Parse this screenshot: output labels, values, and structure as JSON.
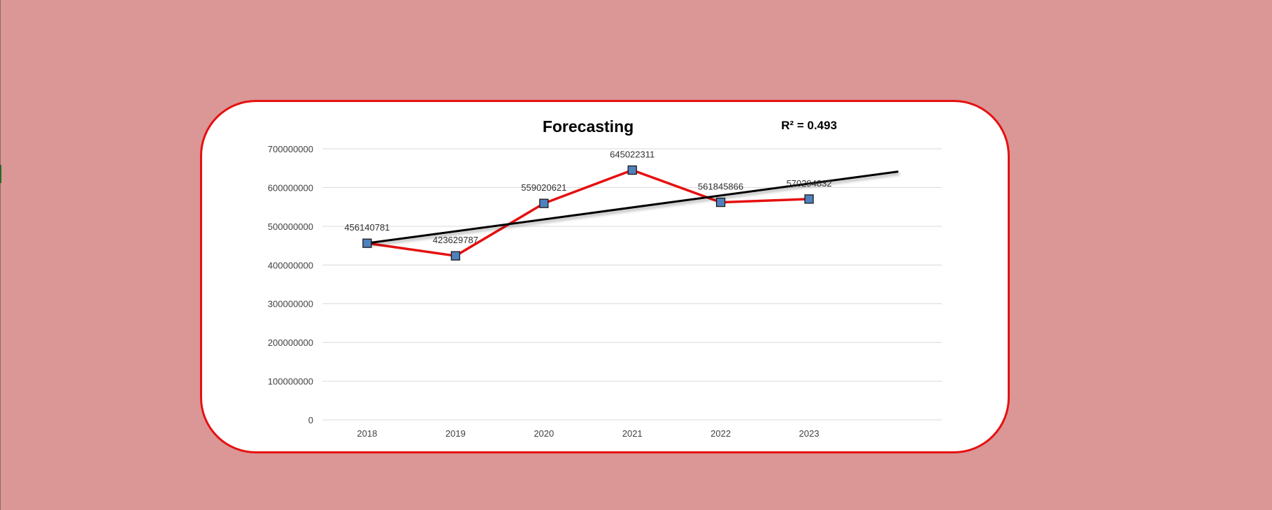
{
  "colors": {
    "background": "#db9696",
    "card_border": "#e61010",
    "series_line": "#e61010",
    "marker_fill": "#4f81bd",
    "trendline": "#000000",
    "grid": "#d9d9d9"
  },
  "chart_data": {
    "type": "line",
    "title": "Forecasting",
    "annotation": "R² = 0.493",
    "xlabel": "",
    "ylabel": "",
    "categories": [
      "2018",
      "2019",
      "2020",
      "2021",
      "2022",
      "2023"
    ],
    "series": [
      {
        "values": [
          456140781,
          423629787,
          559020621,
          645022311,
          561845866,
          570294832
        ],
        "data_labels": [
          "456140781",
          "423629787",
          "559020621",
          "645022311",
          "561845866",
          "570294832"
        ],
        "marker": "square"
      }
    ],
    "trendline": {
      "type": "linear",
      "start_value": 456140781,
      "end_value": 641000000,
      "forward_periods": 1
    },
    "yticks": [
      0,
      100000000,
      200000000,
      300000000,
      400000000,
      500000000,
      600000000,
      700000000
    ],
    "ylim": [
      0,
      700000000
    ],
    "grid": true,
    "legend": "none"
  }
}
